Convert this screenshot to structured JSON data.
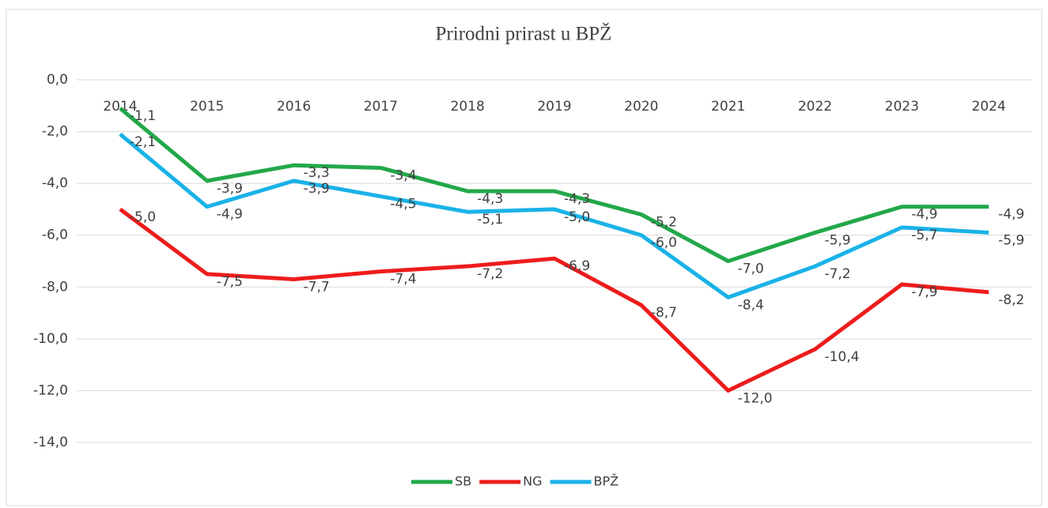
{
  "chart_data": {
    "type": "line",
    "title": "Prirodni prirast u BPŽ",
    "categories": [
      "2014",
      "2015",
      "2016",
      "2017",
      "2018",
      "2019",
      "2020",
      "2021",
      "2022",
      "2023",
      "2024"
    ],
    "series": [
      {
        "name": "SB",
        "color": "#22a84a",
        "values": [
          -1.1,
          -3.9,
          -3.3,
          -3.4,
          -4.3,
          -4.3,
          -5.2,
          -7.0,
          -5.9,
          -4.9,
          -4.9
        ],
        "value_labels": [
          "-1,1",
          "-3,9",
          "-3,3",
          "-3,4",
          "-4,3",
          "-4,3",
          "-5,2",
          "-7,0",
          "-5,9",
          "-4,9",
          "-4,9"
        ]
      },
      {
        "name": "NG",
        "color": "#ee1c1c",
        "values": [
          -5.0,
          -7.5,
          -7.7,
          -7.4,
          -7.2,
          -6.9,
          -8.7,
          -12.0,
          -10.4,
          -7.9,
          -8.2
        ],
        "value_labels": [
          "-5,0",
          "-7,5",
          "-7,7",
          "-7,4",
          "-7,2",
          "-6,9",
          "-8,7",
          "-12,0",
          "-10,4",
          "-7,9",
          "-8,2"
        ]
      },
      {
        "name": "BPŽ",
        "color": "#1ab2e8",
        "values": [
          -2.1,
          -4.9,
          -3.9,
          -4.5,
          -5.1,
          -5.0,
          -6.0,
          -8.4,
          -7.2,
          -5.7,
          -5.9
        ],
        "value_labels": [
          "-2,1",
          "-4,9",
          "-3,9",
          "-4,5",
          "-5,1",
          "-5,0",
          "-6,0",
          "-8,4",
          "-7,2",
          "-5,7",
          "-5,9"
        ]
      }
    ],
    "ylim": [
      -14,
      0
    ],
    "yticks": [
      {
        "value": 0,
        "label": "0,0"
      },
      {
        "value": -2,
        "label": "-2,0"
      },
      {
        "value": -4,
        "label": "-4,0"
      },
      {
        "value": -6,
        "label": "-6,0"
      },
      {
        "value": -8,
        "label": "-8,0"
      },
      {
        "value": -10,
        "label": "-10,0"
      },
      {
        "value": -12,
        "label": "-12,0"
      },
      {
        "value": -14,
        "label": "-14,0"
      }
    ],
    "grid": true,
    "legend": "bottom"
  }
}
